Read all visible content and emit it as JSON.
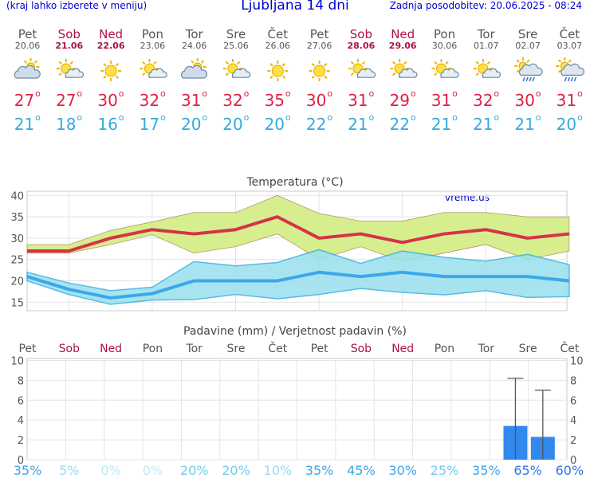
{
  "header": {
    "menu_hint": "(kraj lahko izberete v meniju)",
    "title": "Ljubljana 14 dni",
    "updated": "Zadnja posodobitev: 20.06.2025 - 08:24"
  },
  "colors": {
    "weekday": "#555555",
    "weekend": "#b0104a",
    "max_temp": "#dd2244",
    "min_temp": "#33aadd",
    "max_band": "#d4ee88",
    "min_band": "#99e0ee",
    "rain_bar": "#3388ee"
  },
  "days": [
    {
      "name": "Pet",
      "date": "20.06",
      "weekend": false,
      "icon": "partly-cloudy-icon",
      "max": "27",
      "min": "21"
    },
    {
      "name": "Sob",
      "date": "21.06",
      "weekend": true,
      "icon": "sun-cloud-icon",
      "max": "27",
      "min": "18"
    },
    {
      "name": "Ned",
      "date": "22.06",
      "weekend": true,
      "icon": "sun-icon",
      "max": "30",
      "min": "16"
    },
    {
      "name": "Pon",
      "date": "23.06",
      "weekend": false,
      "icon": "sun-cloud-icon",
      "max": "32",
      "min": "17"
    },
    {
      "name": "Tor",
      "date": "24.06",
      "weekend": false,
      "icon": "partly-cloudy-icon",
      "max": "31",
      "min": "20"
    },
    {
      "name": "Sre",
      "date": "25.06",
      "weekend": false,
      "icon": "sun-cloud-icon",
      "max": "32",
      "min": "20"
    },
    {
      "name": "Čet",
      "date": "26.06",
      "weekend": false,
      "icon": "sun-icon",
      "max": "35",
      "min": "20"
    },
    {
      "name": "Pet",
      "date": "27.06",
      "weekend": false,
      "icon": "sun-icon",
      "max": "30",
      "min": "22"
    },
    {
      "name": "Sob",
      "date": "28.06",
      "weekend": true,
      "icon": "sun-cloud-icon",
      "max": "31",
      "min": "21"
    },
    {
      "name": "Ned",
      "date": "29.06",
      "weekend": true,
      "icon": "sun-cloud-icon",
      "max": "29",
      "min": "22"
    },
    {
      "name": "Pon",
      "date": "30.06",
      "weekend": false,
      "icon": "sun-cloud-icon",
      "max": "31",
      "min": "21"
    },
    {
      "name": "Tor",
      "date": "01.07",
      "weekend": false,
      "icon": "sun-cloud-icon",
      "max": "32",
      "min": "21"
    },
    {
      "name": "Sre",
      "date": "02.07",
      "weekend": false,
      "icon": "sun-rain-icon",
      "max": "30",
      "min": "21"
    },
    {
      "name": "Čet",
      "date": "03.07",
      "weekend": false,
      "icon": "sun-rain-icon",
      "max": "31",
      "min": "20"
    }
  ],
  "chart_data": [
    {
      "type": "line",
      "title": "Temperatura (°C)",
      "watermark": "vreme.us",
      "categories": [
        "20.06",
        "21.06",
        "22.06",
        "23.06",
        "24.06",
        "25.06",
        "26.06",
        "27.06",
        "28.06",
        "29.06",
        "30.06",
        "01.07",
        "02.07",
        "03.07"
      ],
      "y_ticks": [
        "15",
        "20",
        "25",
        "30",
        "35",
        "40"
      ],
      "ylim": [
        13,
        41
      ],
      "grid": true,
      "series": [
        {
          "name": "max",
          "values": [
            27,
            27,
            30,
            32,
            31,
            32,
            35,
            30,
            31,
            29,
            31,
            32,
            30,
            31
          ]
        },
        {
          "name": "max_high",
          "values": [
            28.5,
            28.5,
            31.8,
            33.8,
            36,
            36,
            40,
            35.8,
            34,
            34,
            36,
            36,
            35,
            35
          ]
        },
        {
          "name": "max_low",
          "values": [
            26.5,
            26.5,
            28.5,
            30.8,
            26.5,
            28,
            31,
            25,
            28,
            24.5,
            26.5,
            28.5,
            25,
            27
          ]
        },
        {
          "name": "min",
          "values": [
            21,
            18,
            16,
            17,
            20,
            20,
            20,
            22,
            21,
            22,
            21,
            21,
            21,
            20
          ]
        },
        {
          "name": "min_high",
          "values": [
            22,
            19.5,
            17.7,
            18.5,
            24.5,
            23.5,
            24.3,
            27.3,
            24.1,
            27,
            25.5,
            24.6,
            26.2,
            23.8
          ]
        },
        {
          "name": "min_low",
          "values": [
            20,
            16.8,
            14.5,
            15.5,
            15.6,
            16.8,
            15.8,
            16.8,
            18.2,
            17.3,
            16.7,
            17.7,
            16.1,
            16.3
          ]
        }
      ]
    },
    {
      "type": "bar",
      "title": "Padavine (mm) / Verjetnost padavin (%)",
      "categories": [
        "Pet",
        "Sob",
        "Ned",
        "Pon",
        "Tor",
        "Sre",
        "Čet",
        "Pet",
        "Sob",
        "Ned",
        "Pon",
        "Tor",
        "Sre",
        "Čet"
      ],
      "y_ticks": [
        "0",
        "2",
        "4",
        "6",
        "8",
        "10"
      ],
      "ylim": [
        0,
        10.2
      ],
      "grid": true,
      "rain_mm": [
        0,
        0,
        0,
        0,
        0,
        0,
        0,
        0,
        0,
        0,
        0,
        0,
        3.4,
        2.3
      ],
      "rain_max_mm": [
        0,
        0,
        0,
        0,
        0,
        0,
        0,
        0,
        0,
        0,
        0,
        0,
        8.2,
        7
      ],
      "probability": [
        "35%",
        "5%",
        "0%",
        "0%",
        "20%",
        "20%",
        "10%",
        "35%",
        "45%",
        "30%",
        "25%",
        "35%",
        "65%",
        "60%"
      ],
      "probability_values": [
        35,
        5,
        0,
        0,
        20,
        20,
        10,
        35,
        45,
        30,
        25,
        35,
        65,
        60
      ]
    }
  ]
}
